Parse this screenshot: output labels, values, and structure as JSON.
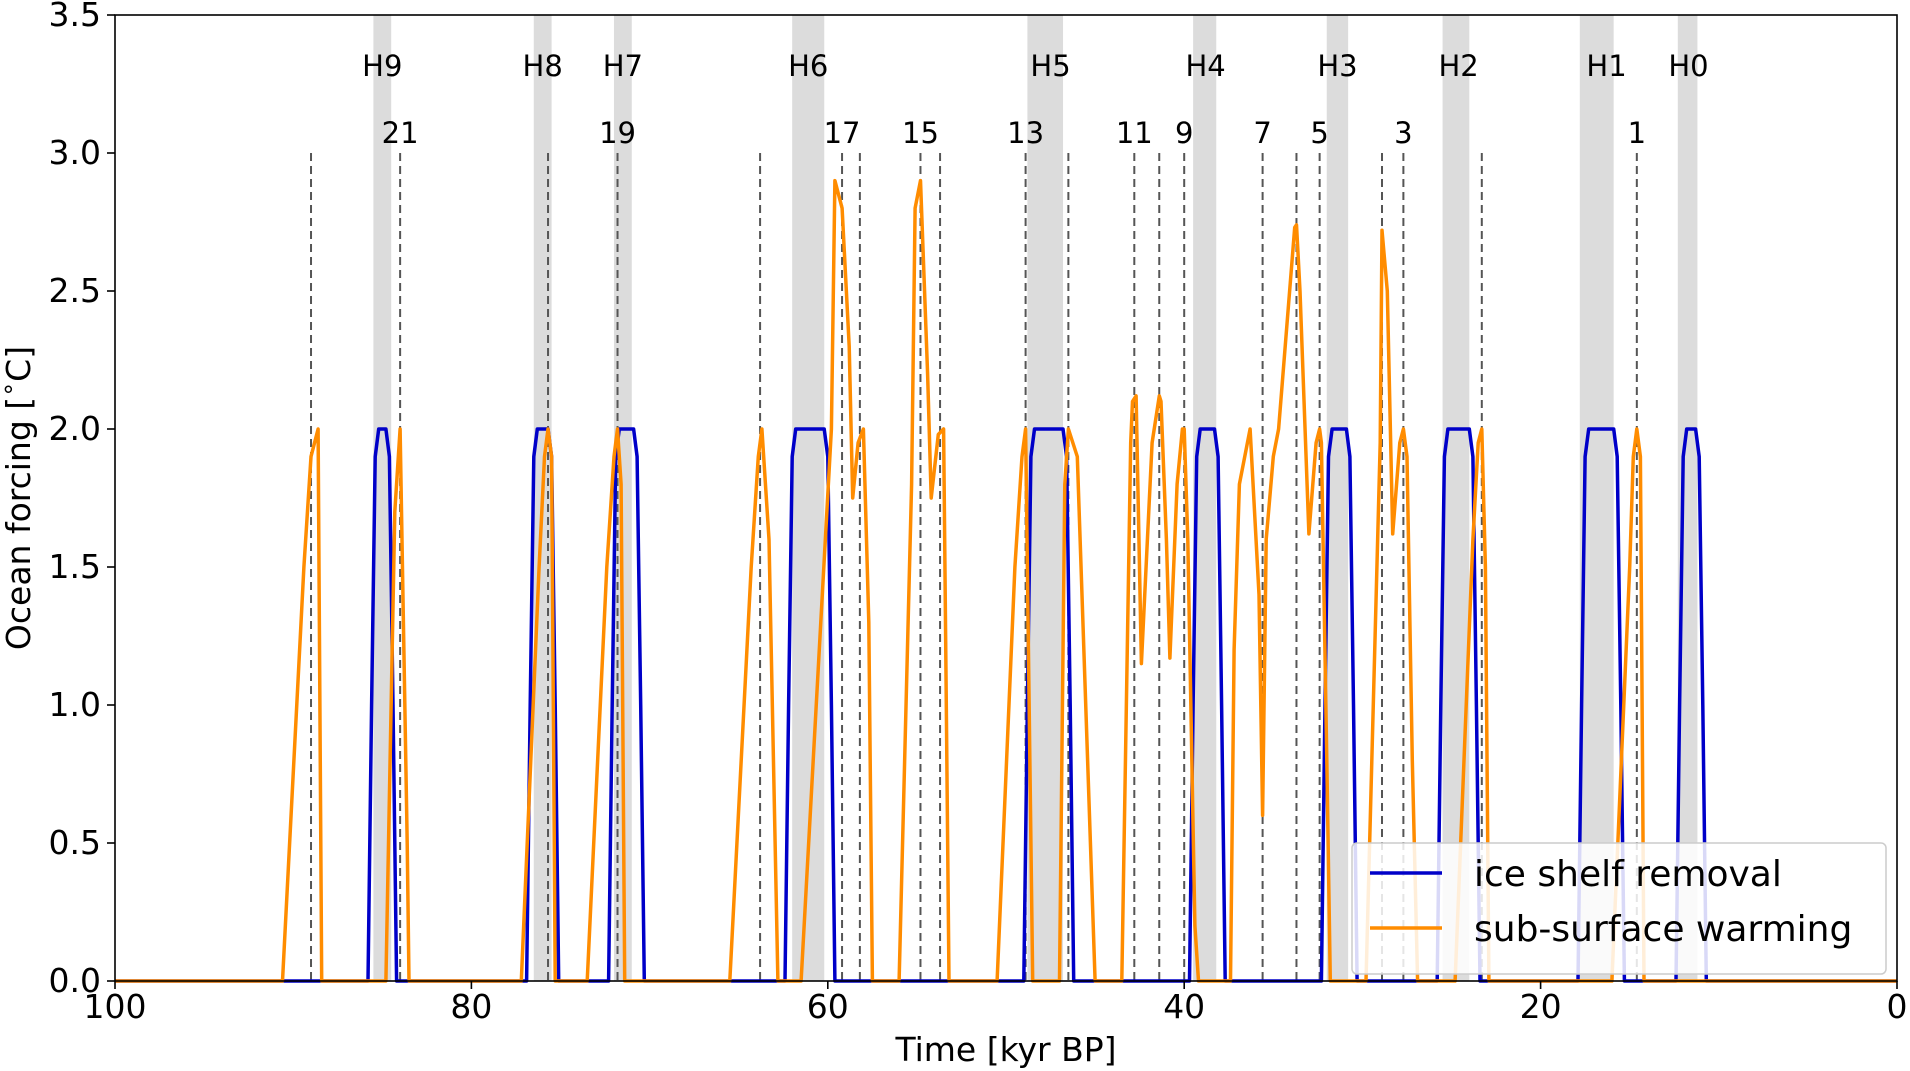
{
  "chart_data": {
    "type": "line",
    "title": "",
    "xlabel": "Time [kyr BP]",
    "ylabel": "Ocean forcing [$^\\circ$C]",
    "xlim": [
      100,
      0
    ],
    "ylim": [
      0,
      3.5
    ],
    "x_ticks": [
      {
        "value": 100,
        "label": "100"
      },
      {
        "value": 80,
        "label": "80"
      },
      {
        "value": 60,
        "label": "60"
      },
      {
        "value": 40,
        "label": "40"
      },
      {
        "value": 20,
        "label": "20"
      },
      {
        "value": 0,
        "label": "0"
      }
    ],
    "y_ticks": [
      {
        "value": 0,
        "label": "0.0"
      },
      {
        "value": 0.5,
        "label": "0.5"
      },
      {
        "value": 1.0,
        "label": "1.0"
      },
      {
        "value": 1.5,
        "label": "1.5"
      },
      {
        "value": 2.0,
        "label": "2.0"
      },
      {
        "value": 2.5,
        "label": "2.5"
      },
      {
        "value": 3.0,
        "label": "3.0"
      },
      {
        "value": 3.5,
        "label": "3.5"
      }
    ],
    "grid": false,
    "legend_position": "bottom-right",
    "heinrich_events": [
      {
        "label": "H9",
        "start": 85.5,
        "end": 84.5,
        "label_x": 85.0
      },
      {
        "label": "H8",
        "start": 76.5,
        "end": 75.5,
        "label_x": 76.0
      },
      {
        "label": "H7",
        "start": 72.0,
        "end": 71.0,
        "label_x": 71.5
      },
      {
        "label": "H6",
        "start": 62.0,
        "end": 60.2,
        "label_x": 61.1
      },
      {
        "label": "H5",
        "start": 48.8,
        "end": 46.8,
        "label_x": 47.5
      },
      {
        "label": "H4",
        "start": 39.5,
        "end": 38.2,
        "label_x": 38.8
      },
      {
        "label": "H3",
        "start": 32.0,
        "end": 30.8,
        "label_x": 31.4
      },
      {
        "label": "H2",
        "start": 25.5,
        "end": 24.0,
        "label_x": 24.6
      },
      {
        "label": "H1",
        "start": 17.8,
        "end": 15.9,
        "label_x": 16.3
      },
      {
        "label": "H0",
        "start": 12.3,
        "end": 11.2,
        "label_x": 11.7
      }
    ],
    "dashed_lines": [
      89,
      84,
      75.7,
      71.8,
      63.8,
      59.2,
      58.2,
      54.8,
      53.7,
      48.9,
      46.5,
      42.8,
      41.4,
      40,
      35.6,
      33.7,
      32.4,
      28.9,
      27.7,
      23.3,
      14.6
    ],
    "dashed_line_top": 3.0,
    "dashed_labels": [
      {
        "label": "21",
        "x": 84
      },
      {
        "label": "19",
        "x": 71.8
      },
      {
        "label": "17",
        "x": 59.2
      },
      {
        "label": "15",
        "x": 54.8
      },
      {
        "label": "13",
        "x": 48.9
      },
      {
        "label": "11",
        "x": 42.8
      },
      {
        "label": "9",
        "x": 40
      },
      {
        "label": "7",
        "x": 35.6
      },
      {
        "label": "5",
        "x": 32.4
      },
      {
        "label": "3",
        "x": 27.7
      },
      {
        "label": "1",
        "x": 14.6
      }
    ],
    "series": [
      {
        "name": "ice shelf removal",
        "color": "#0000c8",
        "x": [
          100,
          85.8,
          85.6,
          85.4,
          85.2,
          84.8,
          84.6,
          84.4,
          84.2,
          76.9,
          76.7,
          76.5,
          76.3,
          75.7,
          75.5,
          75.3,
          75.1,
          72.3,
          72.1,
          71.9,
          71.7,
          70.9,
          70.7,
          70.5,
          70.3,
          62.4,
          62.2,
          62.0,
          61.8,
          60.2,
          60.0,
          59.8,
          59.6,
          49.0,
          48.8,
          48.6,
          48.4,
          46.8,
          46.6,
          46.4,
          46.2,
          39.7,
          39.5,
          39.3,
          39.1,
          38.3,
          38.1,
          37.9,
          37.7,
          32.3,
          32.1,
          31.9,
          31.7,
          30.9,
          30.7,
          30.5,
          30.3,
          25.8,
          25.6,
          25.4,
          25.2,
          24.0,
          23.8,
          23.6,
          23.4,
          17.9,
          17.7,
          17.5,
          17.3,
          15.9,
          15.7,
          15.5,
          15.3,
          12.4,
          12.2,
          12.0,
          11.8,
          11.3,
          11.1,
          10.9,
          10.7,
          0
        ],
        "y": [
          0,
          0,
          1.0,
          1.9,
          2.0,
          2.0,
          1.9,
          1.0,
          0,
          0,
          1.0,
          1.9,
          2.0,
          2.0,
          1.9,
          1.0,
          0,
          0,
          1.0,
          1.9,
          2.0,
          2.0,
          1.9,
          1.0,
          0,
          0,
          1.0,
          1.9,
          2.0,
          2.0,
          1.9,
          1.0,
          0,
          0,
          1.0,
          1.9,
          2.0,
          2.0,
          1.9,
          1.0,
          0,
          0,
          1.0,
          1.9,
          2.0,
          2.0,
          1.9,
          1.0,
          0,
          0,
          1.0,
          1.9,
          2.0,
          2.0,
          1.9,
          1.0,
          0,
          0,
          1.0,
          1.9,
          2.0,
          2.0,
          1.9,
          1.0,
          0,
          0,
          1.0,
          1.9,
          2.0,
          2.0,
          1.9,
          1.0,
          0,
          0,
          1.0,
          1.9,
          2.0,
          2.0,
          1.9,
          1.0,
          0,
          0
        ]
      },
      {
        "name": "sub-surface warming",
        "color": "#ff8c00",
        "x": [
          100,
          91.5,
          90.6,
          89.4,
          89.0,
          88.6,
          88.4,
          84.8,
          84.3,
          84.0,
          83.6,
          83.5,
          77.2,
          76.2,
          75.9,
          75.7,
          75.5,
          75.3,
          73.5,
          72.4,
          72.0,
          71.8,
          71.6,
          71.4,
          65.5,
          64.3,
          63.9,
          63.7,
          63.3,
          62.8,
          61.5,
          59.8,
          59.6,
          59.2,
          58.8,
          58.6,
          58.3,
          58.0,
          57.7,
          57.5,
          56.0,
          55.3,
          55.1,
          54.8,
          54.4,
          54.2,
          53.8,
          53.5,
          53.2,
          50.5,
          49.5,
          49.1,
          48.9,
          48.5,
          47.0,
          46.7,
          46.5,
          46.0,
          45.0,
          43.5,
          43.0,
          42.9,
          42.7,
          42.4,
          41.8,
          41.4,
          41.3,
          41.0,
          40.8,
          40.4,
          40.1,
          40.0,
          39.8,
          39.4,
          39.2,
          38.0,
          37.4,
          37.2,
          36.9,
          36.3,
          35.8,
          35.6,
          35.4,
          35.0,
          34.7,
          33.8,
          33.7,
          33.5,
          33.0,
          32.6,
          32.4,
          32.3,
          32.0,
          31.8,
          29.8,
          29.0,
          28.9,
          28.6,
          28.3,
          27.9,
          27.7,
          27.5,
          27.2,
          26.9,
          24.8,
          23.8,
          23.5,
          23.3,
          23.1,
          22.9,
          16.0,
          15.0,
          14.8,
          14.6,
          14.4,
          14.2,
          0
        ],
        "y": [
          0,
          0,
          0,
          1.5,
          1.9,
          2.0,
          0,
          0,
          1.7,
          2.0,
          0.5,
          0,
          0,
          1.5,
          1.9,
          2.0,
          1.9,
          0,
          0,
          1.5,
          1.9,
          2.0,
          1.8,
          0,
          0,
          1.5,
          1.9,
          2.0,
          1.6,
          0,
          0,
          2.0,
          2.9,
          2.8,
          2.3,
          1.75,
          1.95,
          2.0,
          1.3,
          0,
          0,
          1.8,
          2.8,
          2.9,
          2.2,
          1.75,
          1.98,
          2.0,
          0,
          0,
          1.5,
          1.9,
          2.0,
          0,
          0,
          1.8,
          2.0,
          1.9,
          0,
          0,
          1.95,
          2.1,
          2.12,
          1.15,
          1.95,
          2.12,
          2.1,
          1.6,
          1.17,
          1.8,
          2.0,
          2.0,
          1.6,
          0.2,
          0,
          0,
          0,
          1.2,
          1.8,
          2.0,
          1.4,
          0.6,
          1.6,
          1.9,
          2.0,
          2.73,
          2.74,
          2.5,
          1.62,
          1.95,
          2.0,
          1.95,
          0.8,
          0,
          0,
          1.95,
          2.72,
          2.5,
          1.62,
          1.95,
          2.0,
          1.9,
          0.8,
          0,
          0,
          1.6,
          1.95,
          2.0,
          1.5,
          0,
          0,
          1.5,
          1.9,
          2.0,
          1.9,
          0,
          0
        ]
      }
    ]
  }
}
